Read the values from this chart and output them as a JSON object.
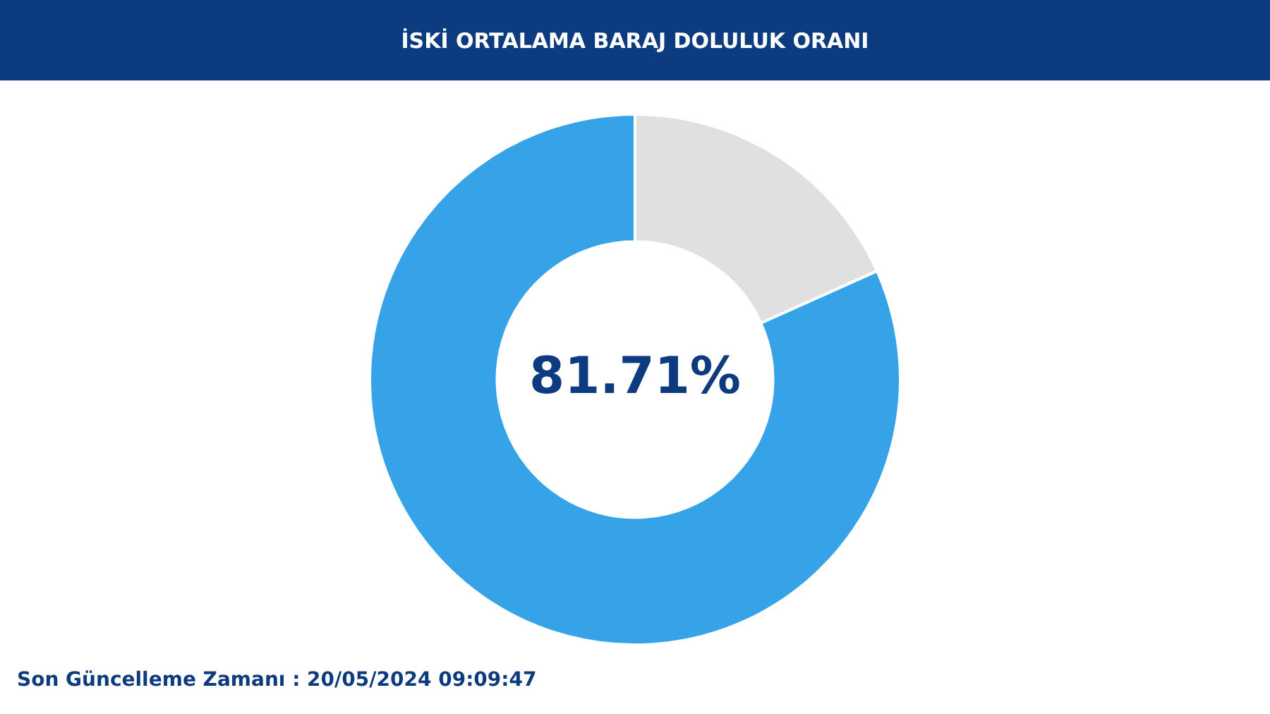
{
  "chart_data": {
    "type": "donut",
    "title": "İSKİ ORTALAMA BARAJ DOLULUK ORANI",
    "categories": [
      null,
      null
    ],
    "values": [
      18.29,
      81.71
    ],
    "colors": [
      "#e0e0e0",
      "#36a2e8"
    ],
    "value_labels": [
      null,
      "81.71%"
    ],
    "legend": false,
    "annotations": [
      "Son Güncelleme Zamanı : 20/05/2024 09:09:47"
    ]
  }
}
